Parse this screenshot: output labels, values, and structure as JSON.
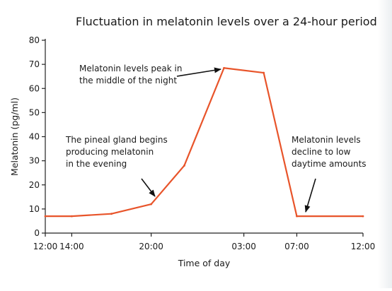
{
  "chart_data": {
    "type": "line",
    "title": "Fluctuation in melatonin levels over a 24-hour period",
    "xlabel": "Time of day",
    "ylabel": "Melatonin (pg/ml)",
    "ylim": [
      0,
      80
    ],
    "xlim_hours": [
      12,
      36
    ],
    "yticks": [
      0,
      10,
      20,
      30,
      40,
      50,
      60,
      70,
      80
    ],
    "xticks": [
      {
        "hour": 12,
        "label": "12:00"
      },
      {
        "hour": 14,
        "label": "14:00"
      },
      {
        "hour": 20,
        "label": "20:00"
      },
      {
        "hour": 27,
        "label": "03:00"
      },
      {
        "hour": 31,
        "label": "07:00"
      },
      {
        "hour": 36,
        "label": "12:00"
      }
    ],
    "series": [
      {
        "color": "#e8542a",
        "points": [
          {
            "x": "12:00",
            "y": 7
          },
          {
            "x": "14:00",
            "y": 7
          },
          {
            "x": "17:00",
            "y": 8
          },
          {
            "x": "20:00",
            "y": 12
          },
          {
            "x": "22:30",
            "y": 28
          },
          {
            "x": "25:30",
            "y": 68.5
          },
          {
            "x": "28:30",
            "y": 66.5
          },
          {
            "x": "31:00",
            "y": 7
          },
          {
            "x": "36:00",
            "y": 7
          }
        ]
      }
    ],
    "grid": false,
    "annotations": [
      {
        "lines": [
          "Melatonin levels peak in",
          "the middle of the night"
        ],
        "points_to": {
          "x": "25:30",
          "y": 68.5
        }
      },
      {
        "lines": [
          "The pineal gland begins",
          "producing melatonin",
          "in the evening"
        ],
        "points_to": {
          "x": "20:00",
          "y": 12
        }
      },
      {
        "lines": [
          "Melatonin levels",
          "decline to low",
          "daytime amounts"
        ],
        "points_to": {
          "x": "31:00",
          "y": 7
        }
      }
    ]
  }
}
